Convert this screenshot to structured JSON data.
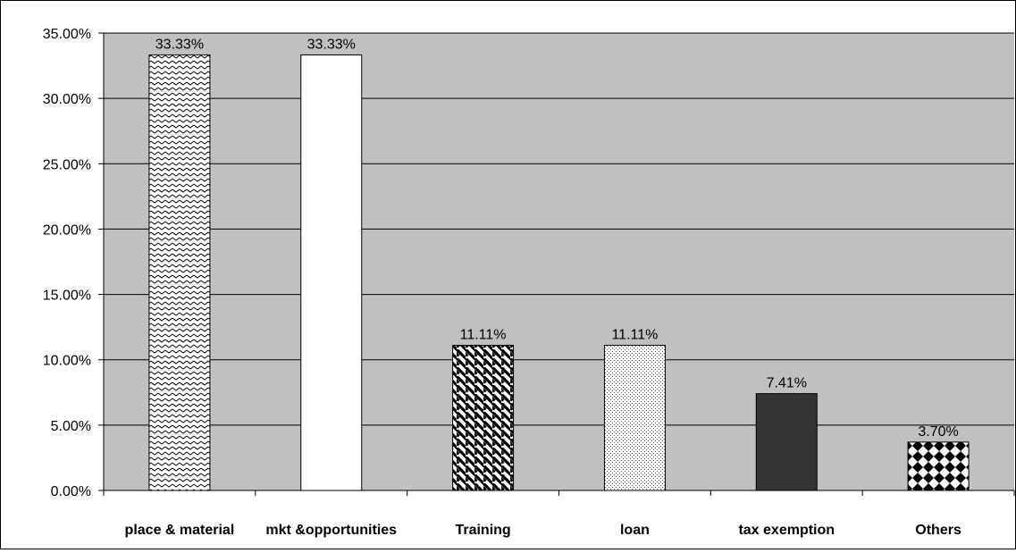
{
  "chart_data": {
    "type": "bar",
    "categories": [
      "place & material",
      "mkt &opportunities",
      "Training",
      "loan",
      "tax exemption",
      "Others"
    ],
    "values": [
      33.33,
      33.33,
      11.11,
      11.11,
      7.41,
      3.7
    ],
    "data_labels": [
      "33.33%",
      "33.33%",
      "11.11%",
      "11.11%",
      "7.41%",
      "3.70%"
    ],
    "y_ticks": [
      "0.00%",
      "5.00%",
      "10.00%",
      "15.00%",
      "20.00%",
      "25.00%",
      "30.00%",
      "35.00%"
    ],
    "ylim": [
      0,
      35
    ],
    "grid": true,
    "legend": "none",
    "title": "",
    "xlabel": "",
    "ylabel": "",
    "colors": {
      "plot_background": "#c0c0c0",
      "grid": "#000000",
      "bar_outline": "#000000"
    },
    "bar_fills": [
      "zigzag-hatch",
      "solid-white",
      "wide-diagonal-stripes",
      "fine-dots",
      "solid-dark-gray",
      "checkerboard-diamonds"
    ]
  }
}
